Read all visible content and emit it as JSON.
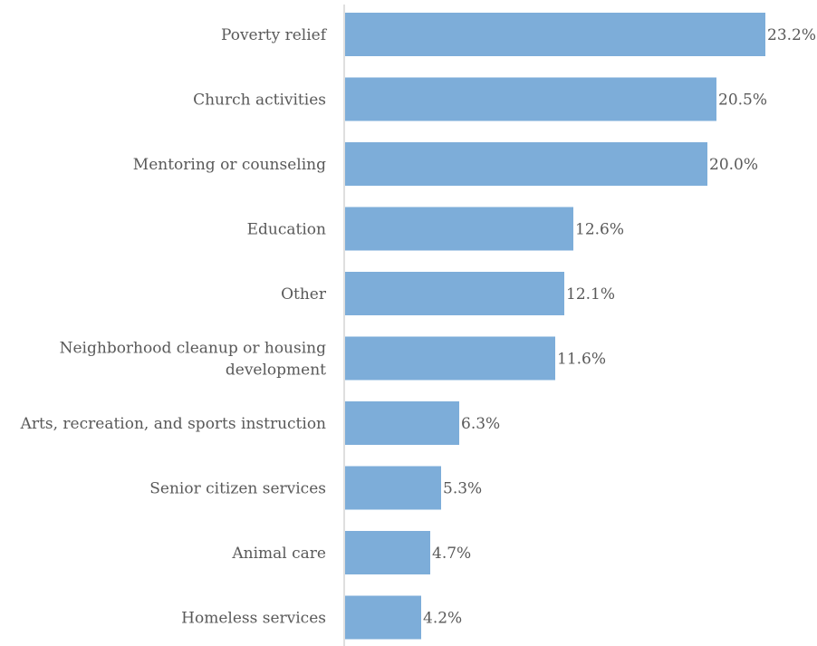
{
  "chart_data": {
    "type": "bar",
    "orientation": "horizontal",
    "title": "",
    "xlabel": "",
    "ylabel": "",
    "categories": [
      "Poverty relief",
      "Church activities",
      "Mentoring or counseling",
      "Education",
      "Other",
      "Neighborhood cleanup or housing development",
      "Arts, recreation, and sports instruction",
      "Senior citizen services",
      "Animal care",
      "Homeless services"
    ],
    "category_lines": [
      [
        "Poverty relief"
      ],
      [
        "Church activities"
      ],
      [
        "Mentoring or counseling"
      ],
      [
        "Education"
      ],
      [
        "Other"
      ],
      [
        "Neighborhood cleanup or housing",
        "development"
      ],
      [
        "Arts, recreation, and sports instruction"
      ],
      [
        "Senior citizen services"
      ],
      [
        "Animal care"
      ],
      [
        "Homeless services"
      ]
    ],
    "values": [
      23.2,
      20.5,
      20.0,
      12.6,
      12.1,
      11.6,
      6.3,
      5.3,
      4.7,
      4.2
    ],
    "value_labels": [
      "23.2%",
      "20.5%",
      "20.0%",
      "12.6%",
      "12.1%",
      "11.6%",
      "6.3%",
      "5.3%",
      "4.7%",
      "4.2%"
    ],
    "unit": "%",
    "xlim": [
      0,
      25
    ],
    "grid": false,
    "legend": "none",
    "colors": {
      "bar": "#7dadd9",
      "axis": "#bfbfbf",
      "text": "#595959"
    }
  }
}
